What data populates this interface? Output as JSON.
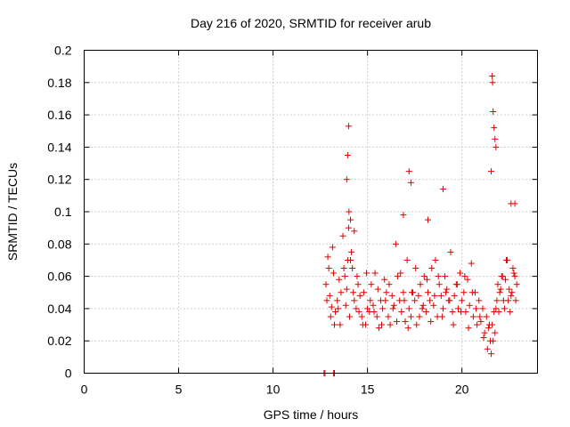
{
  "chart_data": {
    "type": "scatter",
    "title": "Day 216 of 2020, SRMTID for receiver arub",
    "xlabel": "GPS time / hours",
    "ylabel": "SRMTID / TECUs",
    "xlim": [
      0,
      24
    ],
    "ylim": [
      0,
      0.2
    ],
    "xticks": [
      "0",
      "5",
      "10",
      "15",
      "20"
    ],
    "yticks": [
      "0",
      "0.02",
      "0.04",
      "0.06",
      "0.08",
      "0.1",
      "0.12",
      "0.14",
      "0.16",
      "0.18",
      "0.2"
    ],
    "grid": true,
    "marker": "+",
    "color": "#e00000",
    "series": [
      {
        "name": "SRMTID",
        "x": [
          12.8,
          12.9,
          13.0,
          13.1,
          13.2,
          13.3,
          13.4,
          13.5,
          13.6,
          13.7,
          13.8,
          13.9,
          14.0,
          14.1,
          14.2,
          14.3,
          14.4,
          14.5,
          14.6,
          14.7,
          14.8,
          14.9,
          15.0,
          15.1,
          15.2,
          15.3,
          15.4,
          15.5,
          15.6,
          15.7,
          15.8,
          15.9,
          16.0,
          16.1,
          16.2,
          16.3,
          16.4,
          16.5,
          16.6,
          16.7,
          16.8,
          16.9,
          17.0,
          17.1,
          17.2,
          17.3,
          17.4,
          17.5,
          17.6,
          17.7,
          17.8,
          17.9,
          18.0,
          18.1,
          18.2,
          18.3,
          18.4,
          18.5,
          18.6,
          18.7,
          18.8,
          18.9,
          19.0,
          19.1,
          19.2,
          19.3,
          19.4,
          19.5,
          19.6,
          19.7,
          19.8,
          19.9,
          20.0,
          20.1,
          20.2,
          20.3,
          20.4,
          20.5,
          20.6,
          20.7,
          20.8,
          20.9,
          21.0,
          21.1,
          21.2,
          21.3,
          21.4,
          21.5,
          21.6,
          21.7,
          21.8,
          21.9,
          22.0,
          22.1,
          22.2,
          22.3,
          22.4,
          22.5,
          22.6,
          22.7,
          22.8,
          22.9,
          12.85,
          12.95,
          13.05,
          13.15,
          13.25,
          13.45,
          13.55,
          13.75,
          13.85,
          13.95,
          14.05,
          14.15,
          14.25,
          14.45,
          14.55,
          14.75,
          14.95,
          15.15,
          15.35,
          15.55,
          15.75,
          15.95,
          16.15,
          16.35,
          16.55,
          16.75,
          16.95,
          17.15,
          17.35,
          17.55,
          17.75,
          17.95,
          18.15,
          18.35,
          18.55,
          18.75,
          18.95,
          19.15,
          19.35,
          19.55,
          19.75,
          19.95,
          20.15,
          20.35,
          20.55,
          20.75,
          20.95,
          21.15,
          21.35,
          21.45,
          21.55,
          21.65,
          21.75,
          21.85,
          21.95,
          22.05,
          22.15,
          22.25,
          22.35,
          22.45,
          22.55,
          22.65,
          22.75,
          22.85,
          13.9,
          13.95,
          14.0,
          14.02,
          17.2,
          17.3,
          19.0,
          21.6,
          21.62,
          21.65,
          21.7,
          21.75,
          21.8,
          21.55,
          14.1,
          14.3,
          16.9,
          18.2,
          22.6,
          22.8
        ],
        "y": [
          0.055,
          0.072,
          0.048,
          0.041,
          0.062,
          0.038,
          0.045,
          0.058,
          0.05,
          0.085,
          0.06,
          0.052,
          0.09,
          0.07,
          0.065,
          0.045,
          0.04,
          0.055,
          0.048,
          0.035,
          0.05,
          0.03,
          0.04,
          0.038,
          0.055,
          0.042,
          0.062,
          0.035,
          0.028,
          0.045,
          0.04,
          0.058,
          0.05,
          0.035,
          0.03,
          0.048,
          0.042,
          0.08,
          0.06,
          0.045,
          0.038,
          0.05,
          0.032,
          0.07,
          0.04,
          0.035,
          0.05,
          0.045,
          0.03,
          0.048,
          0.055,
          0.04,
          0.06,
          0.038,
          0.05,
          0.045,
          0.065,
          0.042,
          0.07,
          0.035,
          0.055,
          0.048,
          0.04,
          0.06,
          0.052,
          0.045,
          0.075,
          0.038,
          0.048,
          0.055,
          0.04,
          0.062,
          0.045,
          0.05,
          0.038,
          0.058,
          0.042,
          0.068,
          0.035,
          0.05,
          0.03,
          0.045,
          0.032,
          0.04,
          0.025,
          0.035,
          0.028,
          0.02,
          0.03,
          0.038,
          0.04,
          0.055,
          0.05,
          0.06,
          0.045,
          0.058,
          0.07,
          0.052,
          0.048,
          0.065,
          0.06,
          0.055,
          0.045,
          0.065,
          0.035,
          0.078,
          0.03,
          0.04,
          0.03,
          0.065,
          0.042,
          0.07,
          0.035,
          0.075,
          0.05,
          0.06,
          0.038,
          0.03,
          0.062,
          0.045,
          0.038,
          0.052,
          0.03,
          0.045,
          0.055,
          0.04,
          0.032,
          0.062,
          0.045,
          0.028,
          0.05,
          0.065,
          0.035,
          0.042,
          0.058,
          0.032,
          0.048,
          0.06,
          0.035,
          0.05,
          0.045,
          0.03,
          0.055,
          0.038,
          0.06,
          0.028,
          0.05,
          0.04,
          0.035,
          0.022,
          0.015,
          0.03,
          0.012,
          0.02,
          0.025,
          0.045,
          0.038,
          0.052,
          0.06,
          0.04,
          0.07,
          0.045,
          0.038,
          0.05,
          0.062,
          0.045,
          0.12,
          0.135,
          0.153,
          0.1,
          0.125,
          0.118,
          0.114,
          0.184,
          0.18,
          0.162,
          0.152,
          0.145,
          0.14,
          0.125,
          0.095,
          0.088,
          0.098,
          0.095,
          0.105,
          0.105
        ]
      }
    ],
    "zero_markers_x": [
      12.7,
      12.75,
      13.2,
      13.25
    ]
  }
}
